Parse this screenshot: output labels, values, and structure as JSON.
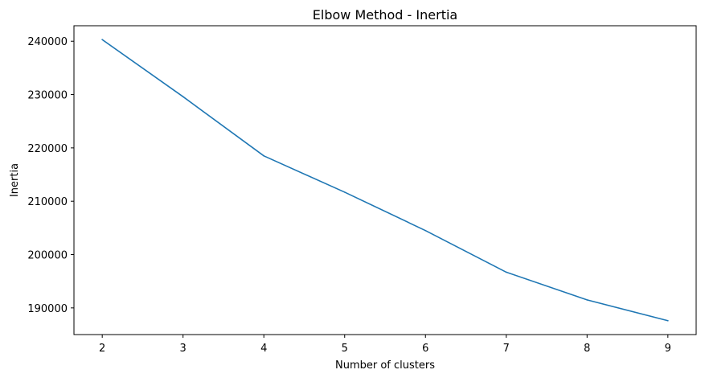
{
  "chart_data": {
    "type": "line",
    "title": "Elbow Method - Inertia",
    "xlabel": "Number of clusters",
    "ylabel": "Inertia",
    "x": [
      2,
      3,
      4,
      5,
      6,
      7,
      8,
      9
    ],
    "series": [
      {
        "values": [
          240300,
          229600,
          218500,
          211700,
          204500,
          196700,
          191500,
          187600
        ],
        "color": "#1f77b4"
      }
    ],
    "xticks": [
      2,
      3,
      4,
      5,
      6,
      7,
      8,
      9
    ],
    "yticks": [
      190000,
      200000,
      210000,
      220000,
      230000,
      240000
    ],
    "xlim": [
      1.65,
      9.35
    ],
    "ylim": [
      185000,
      242900
    ],
    "grid": false
  }
}
